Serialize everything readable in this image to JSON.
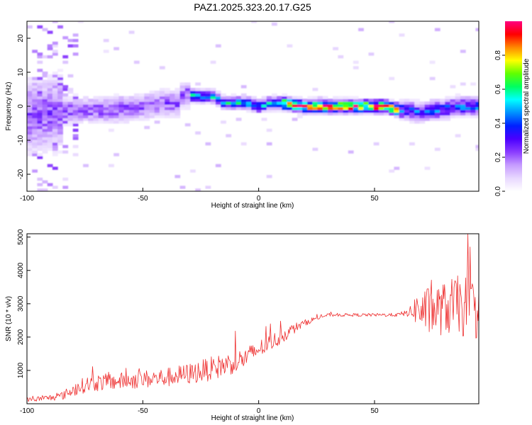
{
  "chart_data": [
    {
      "type": "heatmap",
      "title": "PAZ1.2025.323.20.17.G25",
      "xlabel": "Height of straight line (km)",
      "ylabel": "Frequency (Hz)",
      "xlim": [
        -100,
        95
      ],
      "ylim": [
        -25,
        25
      ],
      "xticks": [
        -100,
        -50,
        0,
        50
      ],
      "xtick_labels": [
        "-100",
        "-50",
        "0",
        "50"
      ],
      "yticks": [
        20,
        10,
        0,
        -10,
        -20
      ],
      "ytick_labels": [
        "20",
        "10",
        "0",
        "-10",
        "-20"
      ],
      "ridge": {
        "x": [
          -100,
          -90,
          -80,
          -70,
          -60,
          -50,
          -40,
          -35,
          -32,
          -28,
          -25,
          -20,
          -15,
          -10,
          -5,
          0,
          5,
          10,
          20,
          30,
          40,
          50,
          55,
          60,
          65,
          70,
          75,
          80,
          85,
          90,
          95
        ],
        "frequency": [
          -3,
          -2,
          -1,
          -1,
          -1,
          0,
          1,
          1,
          4,
          3,
          3,
          3,
          1,
          1,
          1,
          0,
          1,
          1,
          0,
          0,
          0,
          0,
          0,
          -1,
          -1,
          -2,
          -1,
          -1,
          0,
          0,
          0
        ]
      },
      "colorbar": {
        "label": "Normalized spectral amplitude",
        "range": [
          0,
          1
        ],
        "ticks": [
          0.0,
          0.2,
          0.4,
          0.6,
          0.8
        ],
        "tick_labels": [
          "0.0",
          "0.2",
          "0.4",
          "0.6",
          "0.8"
        ],
        "colors": [
          "#ffffff",
          "#e8d8ff",
          "#c69cff",
          "#8a3cff",
          "#4b00ff",
          "#0020ff",
          "#0090ff",
          "#00ffff",
          "#00ff60",
          "#60ff00",
          "#ffff00",
          "#ff8800",
          "#ff0000",
          "#ff0080"
        ]
      }
    },
    {
      "type": "line",
      "xlabel": "Height of straight line (km)",
      "ylabel": "SNR (10 * v/v)",
      "xlim": [
        -100,
        95
      ],
      "ylim": [
        0,
        5100
      ],
      "xticks": [
        -100,
        -50,
        0,
        50
      ],
      "xtick_labels": [
        "-100",
        "-50",
        "0",
        "50"
      ],
      "yticks": [
        1000,
        2000,
        3000,
        4000,
        5000
      ],
      "ytick_labels": [
        "1000",
        "2000",
        "3000",
        "4000",
        "5000"
      ],
      "series": [
        {
          "name": "SNR",
          "color": "#ee3030",
          "x": [
            -100,
            -90,
            -85,
            -80,
            -75,
            -70,
            -60,
            -50,
            -40,
            -30,
            -20,
            -10,
            -5,
            0,
            5,
            10,
            15,
            20,
            25,
            30,
            40,
            50,
            60,
            65,
            68,
            72,
            80,
            85,
            90,
            95
          ],
          "y": [
            100,
            150,
            200,
            350,
            500,
            550,
            600,
            650,
            700,
            800,
            950,
            1150,
            1300,
            1550,
            1750,
            1950,
            2200,
            2400,
            2550,
            2650,
            2650,
            2650,
            2650,
            2700,
            2700,
            2550,
            2600,
            2700,
            2600,
            2500
          ],
          "spread": [
            80,
            120,
            150,
            250,
            300,
            320,
            320,
            340,
            360,
            400,
            450,
            420,
            400,
            350,
            320,
            280,
            200,
            120,
            80,
            60,
            60,
            60,
            70,
            150,
            600,
            900,
            1000,
            1100,
            1200,
            1100
          ]
        }
      ]
    }
  ]
}
